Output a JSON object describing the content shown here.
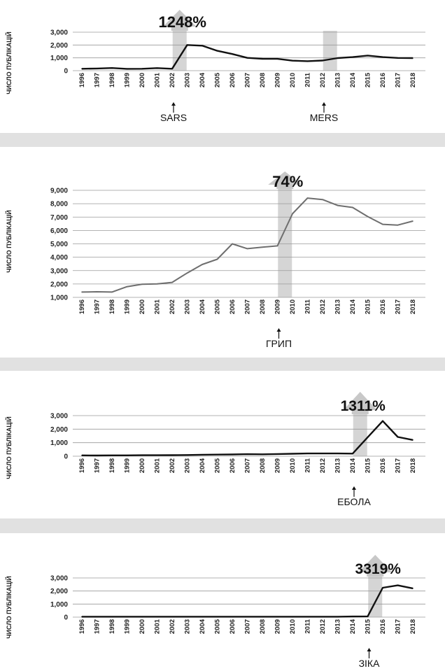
{
  "ylabel": "ЧИСЛО ПУБЛІКАЦІЙ",
  "colors": {
    "line_dark": "#111111",
    "line_gray": "#6e6e6e",
    "grid": "#9a9a9a",
    "highlight": "#d5d5d5",
    "arrow": "#c8c8c8",
    "separator": "#e1e1e1"
  },
  "chart_data": [
    {
      "type": "line",
      "ylabel": "ЧИСЛО ПУБЛІКАЦІЙ",
      "x": [
        "1996",
        "1997",
        "1998",
        "1999",
        "2000",
        "2001",
        "2002",
        "2003",
        "2004",
        "2005",
        "2006",
        "2007",
        "2008",
        "2009",
        "2010",
        "2011",
        "2012",
        "2013",
        "2014",
        "2015",
        "2016",
        "2017",
        "2018"
      ],
      "ylim": [
        0,
        3000
      ],
      "yticks": [
        "0",
        "1,000",
        "2,000",
        "3,000"
      ],
      "series": [
        {
          "values": [
            150,
            170,
            210,
            140,
            150,
            200,
            150,
            2000,
            1950,
            1550,
            1300,
            1000,
            930,
            920,
            780,
            740,
            790,
            980,
            1060,
            1180,
            1060,
            990,
            980
          ]
        }
      ],
      "highlights": [
        {
          "year": "2002",
          "label": "SARS",
          "percent": "1248%",
          "arrow": true
        },
        {
          "year": "2012",
          "label": "MERS"
        }
      ]
    },
    {
      "type": "line",
      "ylabel": "ЧИСЛО ПУБЛІКАЦІЙ",
      "x": [
        "1996",
        "1997",
        "1998",
        "1999",
        "2000",
        "2001",
        "2002",
        "2003",
        "2004",
        "2005",
        "2006",
        "2007",
        "2008",
        "2009",
        "2010",
        "2011",
        "2012",
        "2013",
        "2014",
        "2015",
        "2016",
        "2017",
        "2018"
      ],
      "ylim": [
        1000,
        9000
      ],
      "yticks": [
        "1,000",
        "2,000",
        "3,000",
        "4,000",
        "5,000",
        "6,000",
        "7,000",
        "8,000",
        "9,000"
      ],
      "series": [
        {
          "values": [
            1400,
            1420,
            1400,
            1800,
            1980,
            2010,
            2120,
            2820,
            3460,
            3850,
            5000,
            4640,
            4750,
            4850,
            7250,
            8420,
            8310,
            7870,
            7720,
            7040,
            6460,
            6400,
            6700
          ]
        }
      ],
      "highlights": [
        {
          "year": "2009",
          "label": "ГРИП",
          "percent": "74%",
          "arrow": true
        }
      ]
    },
    {
      "type": "line",
      "ylabel": "ЧИСЛО ПУБЛІКАЦІЙ",
      "x": [
        "1996",
        "1997",
        "1998",
        "1999",
        "2000",
        "2001",
        "2002",
        "2003",
        "2004",
        "2005",
        "2006",
        "2007",
        "2008",
        "2009",
        "2010",
        "2011",
        "2012",
        "2013",
        "2014",
        "2015",
        "2016",
        "2017",
        "2018"
      ],
      "ylim": [
        0,
        3000
      ],
      "yticks": [
        "0",
        "1,000",
        "2,000",
        "3,000"
      ],
      "series": [
        {
          "values": [
            60,
            50,
            60,
            60,
            70,
            70,
            80,
            90,
            110,
            120,
            130,
            150,
            140,
            160,
            180,
            200,
            200,
            200,
            190,
            1400,
            2600,
            1420,
            1200
          ]
        }
      ],
      "highlights": [
        {
          "year": "2014",
          "label": "ЕБОЛА",
          "percent": "1311%",
          "arrow": true
        }
      ]
    },
    {
      "type": "line",
      "ylabel": "ЧИСЛО ПУБЛІКАЦІЙ",
      "x": [
        "1996",
        "1997",
        "1998",
        "1999",
        "2000",
        "2001",
        "2002",
        "2003",
        "2004",
        "2005",
        "2006",
        "2007",
        "2008",
        "2009",
        "2010",
        "2011",
        "2012",
        "2013",
        "2014",
        "2015",
        "2016",
        "2017",
        "2018"
      ],
      "ylim": [
        0,
        3000
      ],
      "yticks": [
        "0",
        "1,000",
        "2,000",
        "3,000"
      ],
      "series": [
        {
          "values": [
            30,
            30,
            30,
            30,
            30,
            30,
            30,
            30,
            30,
            30,
            30,
            30,
            30,
            30,
            30,
            30,
            30,
            30,
            50,
            60,
            2250,
            2430,
            2200
          ]
        }
      ],
      "highlights": [
        {
          "year": "2015",
          "label": "ЗІКА",
          "percent": "3319%",
          "arrow": true
        }
      ]
    }
  ]
}
